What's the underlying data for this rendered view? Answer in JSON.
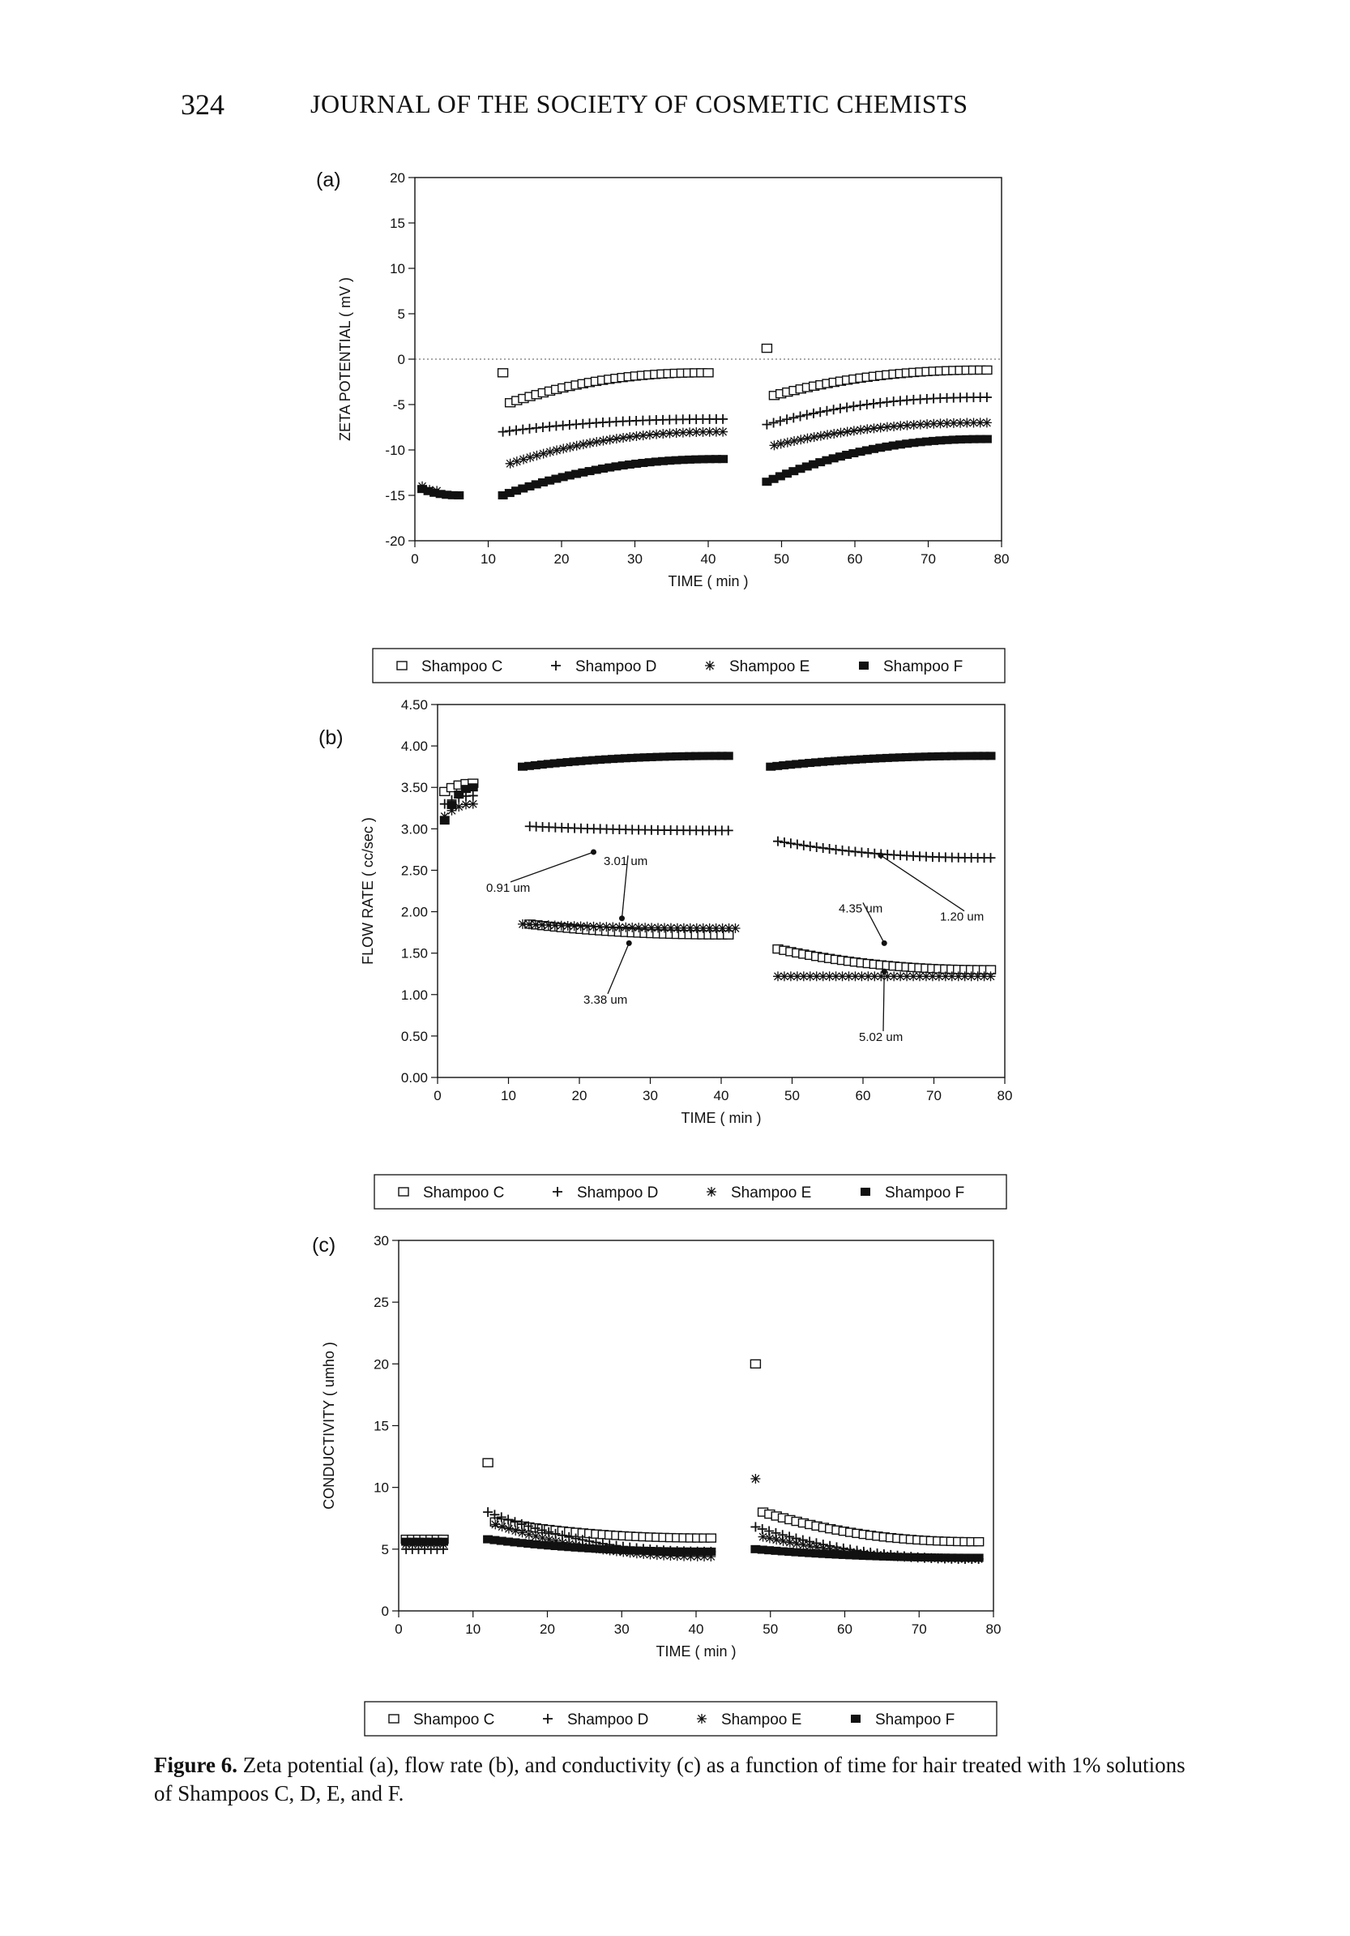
{
  "page": {
    "page_number": "324",
    "journal_title": "JOURNAL OF THE SOCIETY OF COSMETIC CHEMISTS"
  },
  "caption": {
    "lead": "Figure 6.",
    "text": "Zeta potential (a), flow rate (b), and conductivity (c) as a function of time for hair treated with 1% solutions of Shampoos C, D, E, and F."
  },
  "legend": {
    "entries": [
      "Shampoo C",
      "Shampoo D",
      "Shampoo E",
      "Shampoo F"
    ],
    "markers": [
      "open-square",
      "plus",
      "asterisk",
      "filled-square"
    ]
  },
  "chart_data": [
    {
      "panel": "(a)",
      "type": "scatter",
      "xlabel": "TIME ( min )",
      "ylabel": "ZETA POTENTIAL ( mV )",
      "xlim": [
        0,
        80
      ],
      "ylim": [
        -20,
        20
      ],
      "xticks": [
        "0",
        "10",
        "20",
        "30",
        "40",
        "50",
        "60",
        "70",
        "80"
      ],
      "yticks": [
        "20",
        "15",
        "10",
        "5",
        "0",
        "-5",
        "-10",
        "-15",
        "-20"
      ],
      "zero_line": true,
      "series": [
        {
          "name": "Shampoo C",
          "segments": [
            {
              "x": [
                12
              ],
              "y": [
                -1.5
              ]
            },
            {
              "x": [
                13,
                40
              ],
              "y": [
                -4.8,
                -1.5
              ]
            },
            {
              "x": [
                48
              ],
              "y": [
                1.2
              ]
            },
            {
              "x": [
                49,
                78
              ],
              "y": [
                -4.0,
                -1.2
              ]
            }
          ]
        },
        {
          "name": "Shampoo D",
          "segments": [
            {
              "x": [
                12,
                42
              ],
              "y": [
                -8.0,
                -6.6
              ]
            },
            {
              "x": [
                48,
                78
              ],
              "y": [
                -7.2,
                -4.2
              ]
            }
          ]
        },
        {
          "name": "Shampoo E",
          "segments": [
            {
              "x": [
                1,
                2,
                3
              ],
              "y": [
                -14.0,
                -14.2,
                -14.5
              ]
            },
            {
              "x": [
                13,
                42
              ],
              "y": [
                -11.5,
                -8.0
              ]
            },
            {
              "x": [
                49,
                78
              ],
              "y": [
                -9.5,
                -7.0
              ]
            }
          ]
        },
        {
          "name": "Shampoo F",
          "segments": [
            {
              "x": [
                1,
                6
              ],
              "y": [
                -14.3,
                -15.0
              ]
            },
            {
              "x": [
                12,
                42
              ],
              "y": [
                -15.0,
                -11.0
              ]
            },
            {
              "x": [
                48,
                78
              ],
              "y": [
                -13.5,
                -8.8
              ]
            }
          ]
        }
      ]
    },
    {
      "panel": "(b)",
      "type": "scatter",
      "xlabel": "TIME ( min )",
      "ylabel": "FLOW RATE ( cc/sec )",
      "xlim": [
        0,
        80
      ],
      "ylim": [
        0,
        4.5
      ],
      "xticks": [
        "0",
        "10",
        "20",
        "30",
        "40",
        "50",
        "60",
        "70",
        "80"
      ],
      "yticks": [
        "4.50",
        "4.00",
        "3.50",
        "3.00",
        "2.50",
        "2.00",
        "1.50",
        "1.00",
        "0.50",
        "0.00"
      ],
      "series": [
        {
          "name": "Shampoo C",
          "segments": [
            {
              "x": [
                1,
                5
              ],
              "y": [
                3.45,
                3.55
              ]
            },
            {
              "x": [
                13,
                41
              ],
              "y": [
                1.85,
                1.72
              ]
            },
            {
              "x": [
                48,
                78
              ],
              "y": [
                1.55,
                1.3
              ]
            }
          ]
        },
        {
          "name": "Shampoo D",
          "segments": [
            {
              "x": [
                1,
                5
              ],
              "y": [
                3.3,
                3.4
              ]
            },
            {
              "x": [
                13,
                41
              ],
              "y": [
                3.03,
                2.98
              ]
            },
            {
              "x": [
                48,
                78
              ],
              "y": [
                2.85,
                2.65
              ]
            }
          ]
        },
        {
          "name": "Shampoo E",
          "segments": [
            {
              "x": [
                1,
                5
              ],
              "y": [
                3.15,
                3.3
              ]
            },
            {
              "x": [
                12,
                42
              ],
              "y": [
                1.85,
                1.8
              ]
            },
            {
              "x": [
                48,
                78
              ],
              "y": [
                1.22,
                1.22
              ]
            }
          ]
        },
        {
          "name": "Shampoo F",
          "segments": [
            {
              "x": [
                1,
                5
              ],
              "y": [
                3.1,
                3.5
              ]
            },
            {
              "x": [
                12,
                41
              ],
              "y": [
                3.75,
                3.88
              ]
            },
            {
              "x": [
                47,
                78
              ],
              "y": [
                3.75,
                3.88
              ]
            }
          ]
        }
      ],
      "annotations": [
        "0.91 um",
        "3.01 um",
        "3.38 um",
        "4.35 um",
        "1.20 um",
        "5.02 um"
      ]
    },
    {
      "panel": "(c)",
      "type": "scatter",
      "xlabel": "TIME ( min )",
      "ylabel": "CONDUCTIVITY ( umho )",
      "xlim": [
        0,
        80
      ],
      "ylim": [
        0,
        30
      ],
      "xticks": [
        "0",
        "10",
        "20",
        "30",
        "40",
        "50",
        "60",
        "70",
        "80"
      ],
      "yticks": [
        "30",
        "25",
        "20",
        "15",
        "10",
        "5",
        "0"
      ],
      "series": [
        {
          "name": "Shampoo C",
          "segments": [
            {
              "x": [
                1,
                6
              ],
              "y": [
                5.8,
                5.8
              ]
            },
            {
              "x": [
                12
              ],
              "y": [
                12.0
              ]
            },
            {
              "x": [
                13,
                42
              ],
              "y": [
                7.2,
                5.9
              ]
            },
            {
              "x": [
                48
              ],
              "y": [
                20.0
              ]
            },
            {
              "x": [
                49,
                78
              ],
              "y": [
                8.0,
                5.6
              ]
            }
          ]
        },
        {
          "name": "Shampoo D",
          "segments": [
            {
              "x": [
                1,
                6
              ],
              "y": [
                5.0,
                5.0
              ]
            },
            {
              "x": [
                12,
                42
              ],
              "y": [
                8.0,
                4.8
              ]
            },
            {
              "x": [
                48,
                78
              ],
              "y": [
                6.8,
                4.2
              ]
            }
          ]
        },
        {
          "name": "Shampoo E",
          "segments": [
            {
              "x": [
                1,
                6
              ],
              "y": [
                5.4,
                5.4
              ]
            },
            {
              "x": [
                48
              ],
              "y": [
                10.7
              ]
            },
            {
              "x": [
                13,
                42
              ],
              "y": [
                7.0,
                4.4
              ]
            },
            {
              "x": [
                49,
                78
              ],
              "y": [
                6.0,
                4.2
              ]
            }
          ]
        },
        {
          "name": "Shampoo F",
          "segments": [
            {
              "x": [
                1,
                6
              ],
              "y": [
                5.6,
                5.6
              ]
            },
            {
              "x": [
                12,
                42
              ],
              "y": [
                5.8,
                4.8
              ]
            },
            {
              "x": [
                48,
                78
              ],
              "y": [
                5.0,
                4.3
              ]
            }
          ]
        }
      ]
    }
  ]
}
